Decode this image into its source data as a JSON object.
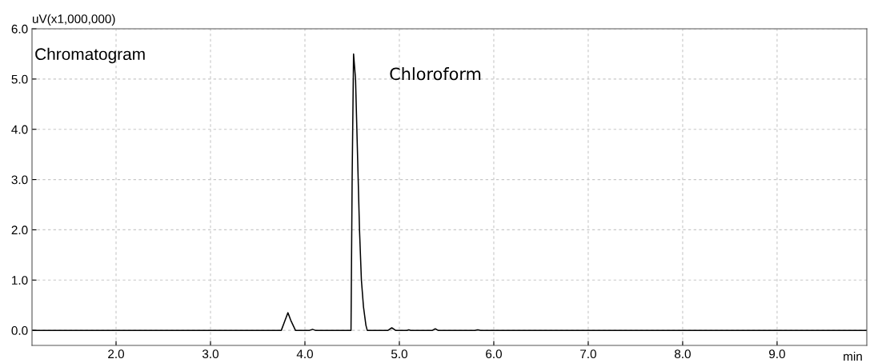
{
  "chart_data": {
    "type": "line",
    "xlabel": "min",
    "ylabel": "uV(x1,000,000)",
    "x": [
      1.11,
      3.75,
      3.79,
      3.82,
      3.85,
      3.9,
      4.05,
      4.08,
      4.11,
      4.488,
      4.5,
      4.515,
      4.536,
      4.564,
      4.578,
      4.598,
      4.62,
      4.646,
      4.66,
      4.88,
      4.92,
      4.96,
      5.08,
      5.1,
      5.12,
      5.35,
      5.38,
      5.41,
      5.8,
      5.83,
      5.86,
      9.95
    ],
    "series": [
      {
        "color": "#000000",
        "values": [
          0,
          0,
          0.2,
          0.35,
          0.2,
          0,
          0,
          0.02,
          0,
          0,
          3.0,
          5.5,
          5.0,
          3.0,
          2.0,
          1.0,
          0.47,
          0.1,
          0,
          0,
          0.05,
          0,
          0,
          0.01,
          0,
          0,
          0.03,
          0,
          0,
          0.01,
          0,
          0
        ]
      }
    ],
    "xlim": [
      1.11,
      9.95
    ],
    "ylim": [
      -0.3,
      6.0
    ],
    "xticks": [
      {
        "value": 2,
        "label": "2.0"
      },
      {
        "value": 3,
        "label": "3.0"
      },
      {
        "value": 4,
        "label": "4.0"
      },
      {
        "value": 5,
        "label": "5.0"
      },
      {
        "value": 6,
        "label": "6.0"
      },
      {
        "value": 7,
        "label": "7.0"
      },
      {
        "value": 8,
        "label": "8.0"
      },
      {
        "value": 9,
        "label": "9.0"
      }
    ],
    "yticks": [
      {
        "value": 0,
        "label": "0.0"
      },
      {
        "value": 1,
        "label": "1.0"
      },
      {
        "value": 2,
        "label": "2.0"
      },
      {
        "value": 3,
        "label": "3.0"
      },
      {
        "value": 4,
        "label": "4.0"
      },
      {
        "value": 5,
        "label": "5.0"
      },
      {
        "value": 6,
        "label": "6.0"
      }
    ],
    "grid": true,
    "line_style": "solid",
    "marker": "none",
    "annotations": [
      "Chromatogram",
      {
        "text": "Chloroform",
        "x": 4.515,
        "y": 5.5
      }
    ]
  }
}
